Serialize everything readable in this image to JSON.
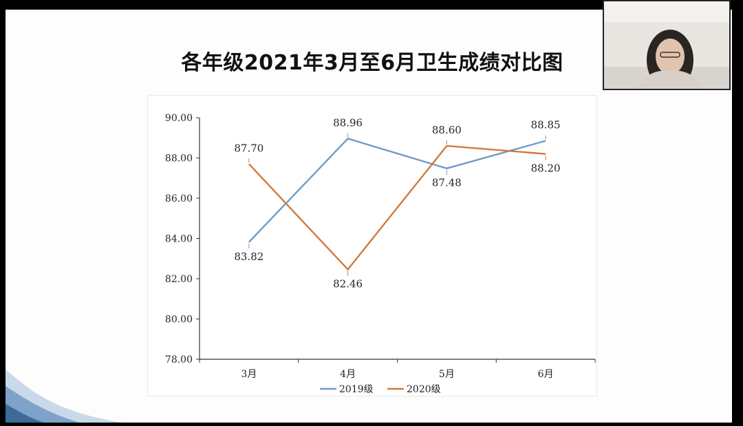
{
  "slide": {
    "title": "各年级2021年3月至6月卫生成绩对比图"
  },
  "chart_data": {
    "type": "line",
    "title": "各年级2021年3月至6月卫生成绩对比图",
    "categories": [
      "3月",
      "4月",
      "5月",
      "6月"
    ],
    "series": [
      {
        "name": "2019级",
        "values": [
          83.82,
          88.96,
          87.48,
          88.85
        ],
        "labels": [
          "83.82",
          "88.96",
          "87.48",
          "88.85"
        ],
        "color": "#6e9bc7"
      },
      {
        "name": "2020级",
        "values": [
          87.7,
          82.46,
          88.6,
          88.2
        ],
        "labels": [
          "87.70",
          "82.46",
          "88.60",
          "88.20"
        ],
        "color": "#d2783c"
      }
    ],
    "ylim": [
      78,
      90
    ],
    "yticks": [
      "78.00",
      "80.00",
      "82.00",
      "84.00",
      "86.00",
      "88.00",
      "90.00"
    ],
    "grid": false,
    "legend": "bottom"
  },
  "colors": {
    "series_2019": "#6e9bc7",
    "series_2020": "#d2783c",
    "axis": "#333333",
    "slide_bg": "#fdfdfd"
  }
}
